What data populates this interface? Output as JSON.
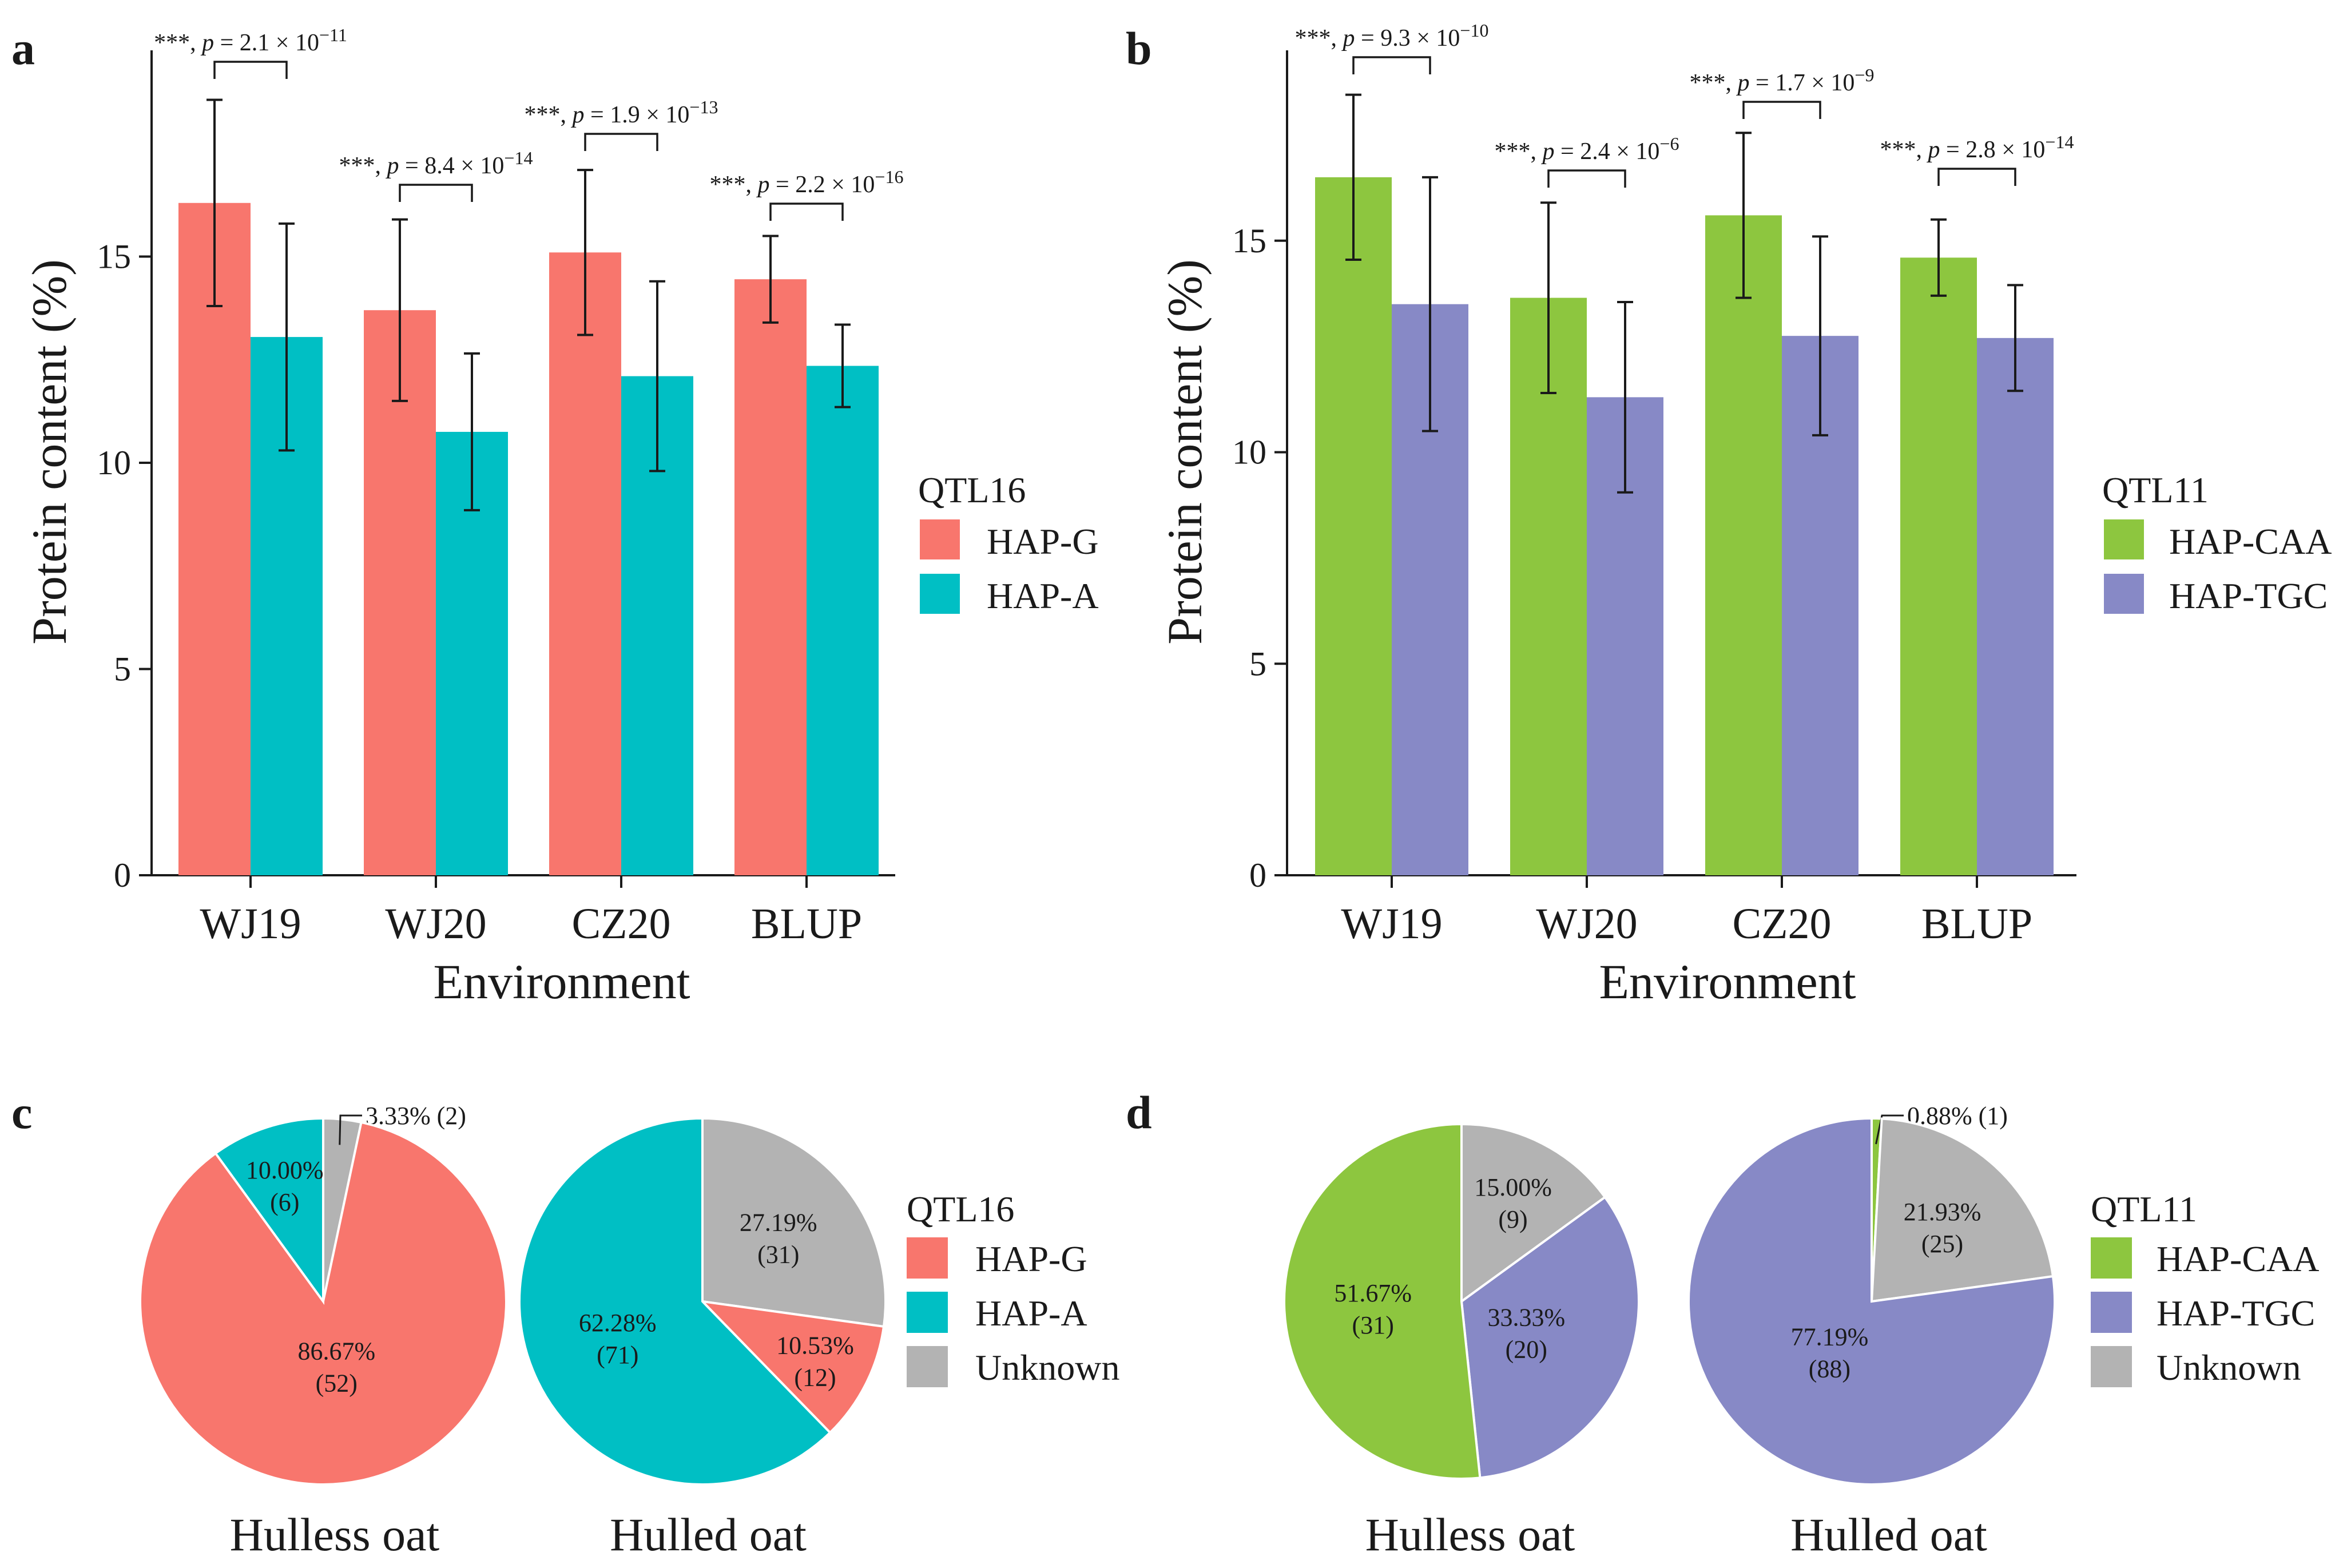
{
  "colors": {
    "hap_g": "#F8766D",
    "hap_a": "#00BFC4",
    "hap_caa": "#8DC63F",
    "hap_tgc": "#8789C6",
    "unknown": "#B3B3B3",
    "axis": "#1a1a1a"
  },
  "chart_data": [
    {
      "type": "bar",
      "panel": "a",
      "xlabel": "Environment",
      "ylabel": "Protein content (%)",
      "ylim": [
        0,
        20
      ],
      "yticks": [
        "0",
        "5",
        "10",
        "15"
      ],
      "categories": [
        "WJ19",
        "WJ20",
        "CZ20",
        "BLUP"
      ],
      "legend_title": "QTL16",
      "series": [
        {
          "name": "HAP-G",
          "color_key": "hap_g",
          "values": [
            16.3,
            13.7,
            15.1,
            14.45
          ],
          "err": [
            2.5,
            2.2,
            2.0,
            1.05
          ]
        },
        {
          "name": "HAP-A",
          "color_key": "hap_a",
          "values": [
            13.05,
            10.75,
            12.1,
            12.35
          ],
          "err": [
            2.75,
            1.9,
            2.3,
            1.0
          ]
        }
      ],
      "significance": [
        {
          "stars": "***, ",
          "p": "p",
          "eq": " = 2.1 × 10",
          "exp": "−11"
        },
        {
          "stars": "***, ",
          "p": "p",
          "eq": " = 8.4 × 10",
          "exp": "−14"
        },
        {
          "stars": "***, ",
          "p": "p",
          "eq": " = 1.9 × 10",
          "exp": "−13"
        },
        {
          "stars": "***, ",
          "p": "p",
          "eq": " = 2.2 × 10",
          "exp": "−16"
        }
      ]
    },
    {
      "type": "bar",
      "panel": "b",
      "xlabel": "Environment",
      "ylabel": "Protein content (%)",
      "ylim": [
        0,
        19.5
      ],
      "yticks": [
        "0",
        "5",
        "10",
        "15"
      ],
      "categories": [
        "WJ19",
        "WJ20",
        "CZ20",
        "BLUP"
      ],
      "legend_title": "QTL11",
      "series": [
        {
          "name": "HAP-CAA",
          "color_key": "hap_caa",
          "values": [
            16.5,
            13.65,
            15.6,
            14.6
          ],
          "err": [
            1.95,
            2.25,
            1.95,
            0.9
          ]
        },
        {
          "name": "HAP-TGC",
          "color_key": "hap_tgc",
          "values": [
            13.5,
            11.3,
            12.75,
            12.7
          ],
          "err": [
            3.0,
            2.25,
            2.35,
            1.25
          ]
        }
      ],
      "significance": [
        {
          "stars": "***, ",
          "p": "p",
          "eq": " = 9.3 × 10",
          "exp": "−10"
        },
        {
          "stars": "***, ",
          "p": "p",
          "eq": " = 2.4 × 10",
          "exp": "−6"
        },
        {
          "stars": "***, ",
          "p": "p",
          "eq": " = 1.7 × 10",
          "exp": "−9"
        },
        {
          "stars": "***, ",
          "p": "p",
          "eq": " = 2.8 × 10",
          "exp": "−14"
        }
      ]
    },
    {
      "type": "pie",
      "panel": "c",
      "legend_title": "QTL16",
      "legend": [
        {
          "name": "HAP-G",
          "color_key": "hap_g"
        },
        {
          "name": "HAP-A",
          "color_key": "hap_a"
        },
        {
          "name": "Unknown",
          "color_key": "unknown"
        }
      ],
      "pies": [
        {
          "title": "Hulless oat",
          "slices": [
            {
              "name": "Unknown",
              "color_key": "unknown",
              "value": 2,
              "pct": "3.33%",
              "count": "(2)",
              "label": "3.33% (2)"
            },
            {
              "name": "HAP-G",
              "color_key": "hap_g",
              "value": 52,
              "pct": "86.67%",
              "count": "(52)"
            },
            {
              "name": "HAP-A",
              "color_key": "hap_a",
              "value": 6,
              "pct": "10.00%",
              "count": "(6)"
            }
          ]
        },
        {
          "title": "Hulled oat",
          "slices": [
            {
              "name": "Unknown",
              "color_key": "unknown",
              "value": 31,
              "pct": "27.19%",
              "count": "(31)"
            },
            {
              "name": "HAP-G",
              "color_key": "hap_g",
              "value": 12,
              "pct": "10.53%",
              "count": "(12)"
            },
            {
              "name": "HAP-A",
              "color_key": "hap_a",
              "value": 71,
              "pct": "62.28%",
              "count": "(71)"
            }
          ]
        }
      ]
    },
    {
      "type": "pie",
      "panel": "d",
      "legend_title": "QTL11",
      "legend": [
        {
          "name": "HAP-CAA",
          "color_key": "hap_caa"
        },
        {
          "name": "HAP-TGC",
          "color_key": "hap_tgc"
        },
        {
          "name": "Unknown",
          "color_key": "unknown"
        }
      ],
      "pies": [
        {
          "title": "Hulless oat",
          "slices": [
            {
              "name": "Unknown",
              "color_key": "unknown",
              "value": 9,
              "pct": "15.00%",
              "count": "(9)"
            },
            {
              "name": "HAP-TGC",
              "color_key": "hap_tgc",
              "value": 20,
              "pct": "33.33%",
              "count": "(20)"
            },
            {
              "name": "HAP-CAA",
              "color_key": "hap_caa",
              "value": 31,
              "pct": "51.67%",
              "count": "(31)"
            }
          ]
        },
        {
          "title": "Hulled oat",
          "slices": [
            {
              "name": "HAP-CAA",
              "color_key": "hap_caa",
              "value": 1,
              "pct": "0.88%",
              "count": "(1)",
              "label": "0.88% (1)"
            },
            {
              "name": "Unknown",
              "color_key": "unknown",
              "value": 25,
              "pct": "21.93%",
              "count": "(25)"
            },
            {
              "name": "HAP-TGC",
              "color_key": "hap_tgc",
              "value": 88,
              "pct": "77.19%",
              "count": "(88)"
            }
          ]
        }
      ]
    }
  ]
}
